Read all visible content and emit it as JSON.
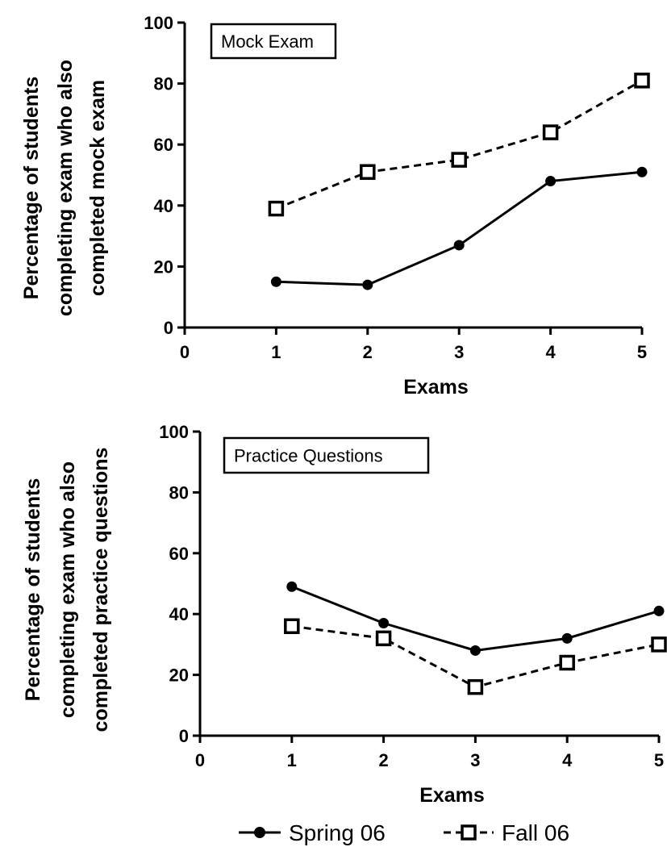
{
  "chart_data": [
    {
      "type": "line",
      "title": "Mock Exam",
      "xlabel": "Exams",
      "ylabel": [
        "Percentage of students",
        "completing exam who also",
        "completed mock exam"
      ],
      "xlim": [
        0,
        5
      ],
      "ylim": [
        0,
        100
      ],
      "xticks": [
        0,
        1,
        2,
        3,
        4,
        5
      ],
      "yticks": [
        0,
        20,
        40,
        60,
        80,
        100
      ],
      "grid": false,
      "x": [
        1,
        2,
        3,
        4,
        5
      ],
      "series": [
        {
          "name": "Spring 06",
          "marker": "filled-circle",
          "line": "solid",
          "values": [
            15,
            14,
            27,
            48,
            51
          ]
        },
        {
          "name": "Fall 06",
          "marker": "open-square",
          "line": "dashed",
          "values": [
            39,
            51,
            55,
            64,
            81
          ]
        }
      ]
    },
    {
      "type": "line",
      "title": "Practice Questions",
      "xlabel": "Exams",
      "ylabel": [
        "Percentage of students",
        "completing exam who also",
        "completed practice questions"
      ],
      "xlim": [
        0,
        5
      ],
      "ylim": [
        0,
        100
      ],
      "xticks": [
        0,
        1,
        2,
        3,
        4,
        5
      ],
      "yticks": [
        0,
        20,
        40,
        60,
        80,
        100
      ],
      "grid": false,
      "x": [
        1,
        2,
        3,
        4,
        5
      ],
      "series": [
        {
          "name": "Spring 06",
          "marker": "filled-circle",
          "line": "solid",
          "values": [
            49,
            37,
            28,
            32,
            41
          ]
        },
        {
          "name": "Fall 06",
          "marker": "open-square",
          "line": "dashed",
          "values": [
            36,
            32,
            16,
            24,
            30
          ]
        }
      ]
    }
  ],
  "legend": {
    "placement": "bottom-center",
    "items": [
      {
        "label": "Spring 06",
        "marker": "filled-circle",
        "line": "solid"
      },
      {
        "label": "Fall 06",
        "marker": "open-square",
        "line": "dashed"
      }
    ]
  }
}
